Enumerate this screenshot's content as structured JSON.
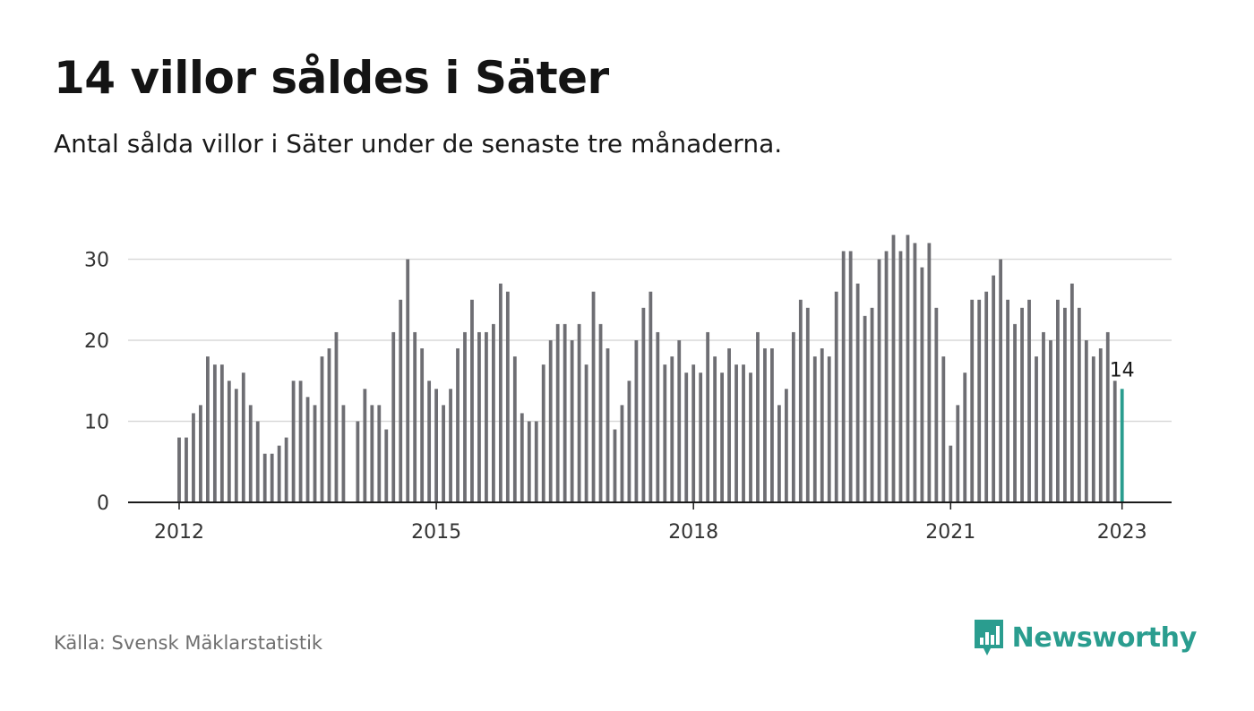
{
  "title": "14 villor såldes i Säter",
  "subtitle": "Antal sålda villor i Säter under de senaste tre månaderna.",
  "source": "Källa: Svensk Mäklarstatistik",
  "brand": {
    "name": "Newsworthy",
    "icon": "bar-chart-speech-bubble-icon",
    "color": "#2a9d8f"
  },
  "colors": {
    "bar": "#6e6e73",
    "highlight": "#2a9d8f",
    "grid": "#d9d9d9",
    "axis": "#1a1a1a"
  },
  "chart_data": {
    "type": "bar",
    "title": "14 villor såldes i Säter",
    "xlabel": "",
    "ylabel": "",
    "ylim": [
      0,
      33
    ],
    "yticks": [
      0,
      10,
      20,
      30
    ],
    "xticks": [
      "2012",
      "2015",
      "2018",
      "2021",
      "2023"
    ],
    "grid": true,
    "start": "2012-01",
    "frequency": "monthly",
    "values": [
      8,
      8,
      11,
      12,
      18,
      17,
      17,
      15,
      14,
      16,
      12,
      10,
      6,
      6,
      7,
      8,
      15,
      15,
      13,
      12,
      18,
      19,
      21,
      12,
      null,
      10,
      14,
      12,
      12,
      9,
      21,
      25,
      30,
      21,
      19,
      15,
      14,
      12,
      14,
      19,
      21,
      25,
      21,
      21,
      22,
      27,
      26,
      18,
      11,
      10,
      10,
      17,
      20,
      22,
      22,
      20,
      22,
      17,
      26,
      22,
      19,
      9,
      12,
      15,
      20,
      24,
      26,
      21,
      17,
      18,
      20,
      16,
      17,
      16,
      21,
      18,
      16,
      19,
      17,
      17,
      16,
      21,
      19,
      19,
      12,
      14,
      21,
      25,
      24,
      18,
      19,
      18,
      26,
      31,
      31,
      27,
      23,
      24,
      30,
      31,
      33,
      31,
      33,
      32,
      29,
      32,
      24,
      18,
      7,
      12,
      16,
      25,
      25,
      26,
      28,
      30,
      25,
      22,
      24,
      25,
      18,
      21,
      20,
      25,
      24,
      27,
      24,
      20,
      18,
      19,
      21,
      15,
      14
    ],
    "last_label": "14"
  }
}
